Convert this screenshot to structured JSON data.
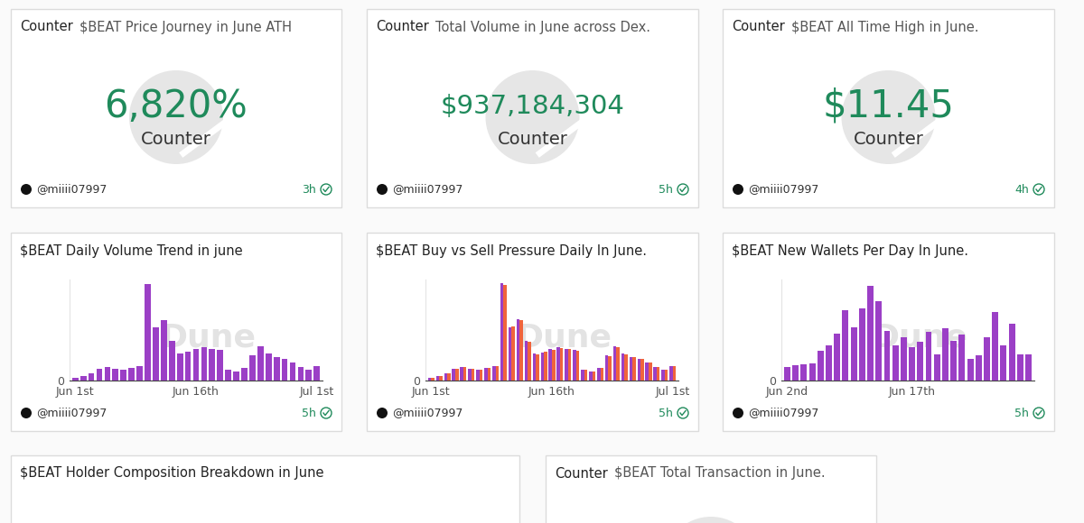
{
  "chart_data": [
    {
      "type": "counter",
      "tag": "Counter",
      "title": "$BEAT Price Journey in June ATH",
      "values": [
        6820
      ],
      "value_labels": [
        "6,820%"
      ],
      "watermark": "Counter",
      "author": "@miiii07997",
      "age": "3h"
    },
    {
      "type": "counter",
      "tag": "Counter",
      "title": "Total Volume in June across Dex.",
      "values": [
        937184304
      ],
      "value_labels": [
        "$937,184,304"
      ],
      "watermark": "Counter",
      "author": "@miiii07997",
      "age": "5h"
    },
    {
      "type": "counter",
      "tag": "Counter",
      "title": "$BEAT All Time High in June.",
      "values": [
        11.45
      ],
      "value_labels": [
        "$11.45"
      ],
      "watermark": "Counter",
      "author": "@miiii07997",
      "age": "4h"
    },
    {
      "type": "bar",
      "title": "$BEAT Daily Volume Trend in june",
      "categories": [
        "Jun 1st",
        null,
        null,
        null,
        null,
        null,
        null,
        null,
        null,
        null,
        null,
        null,
        null,
        null,
        null,
        "Jun 16th",
        null,
        null,
        null,
        null,
        null,
        null,
        null,
        null,
        null,
        null,
        null,
        null,
        null,
        null,
        "Jul 1st"
      ],
      "values": [
        3400000,
        5700000,
        9100000,
        14700000,
        17000000,
        14700000,
        13600000,
        15900000,
        18100000,
        122400000,
        68000000,
        77100000,
        49900000,
        34000000,
        36300000,
        39700000,
        41900000,
        39700000,
        38500000,
        13600000,
        11300000,
        15900000,
        31700000,
        43100000,
        34000000,
        29500000,
        27200000,
        22700000,
        17000000,
        13600000,
        18100000
      ],
      "color": "#9b3fc6",
      "ylim": [
        0,
        128000000
      ],
      "yticks": [
        0
      ],
      "watermark": "Dune",
      "author": "@miiii07997",
      "age": "5h"
    },
    {
      "type": "bar",
      "title": "$BEAT Buy vs Sell Pressure Daily In June.",
      "categories": [
        "Jun 1st",
        null,
        null,
        null,
        null,
        null,
        null,
        null,
        null,
        null,
        null,
        null,
        null,
        null,
        null,
        "Jun 16th",
        null,
        null,
        null,
        null,
        null,
        null,
        null,
        null,
        null,
        null,
        null,
        null,
        null,
        null,
        "Jul 1st"
      ],
      "series": [
        {
          "color": "#9b3fc6",
          "values": [
            1700000,
            2900000,
            4600000,
            7500000,
            8400000,
            7200000,
            6900000,
            8100000,
            9000000,
            61800000,
            33500000,
            39000000,
            25400000,
            17200000,
            18000000,
            20100000,
            21200000,
            19800000,
            19500000,
            6900000,
            5600000,
            8000000,
            16000000,
            21800000,
            17200000,
            14900000,
            13500000,
            11500000,
            8600000,
            6800000,
            9200000
          ]
        },
        {
          "color": "#f0643c",
          "values": [
            1700000,
            2800000,
            4500000,
            7200000,
            8600000,
            7500000,
            6700000,
            7800000,
            9100000,
            60600000,
            34500000,
            38100000,
            24500000,
            16800000,
            18300000,
            19600000,
            20700000,
            19900000,
            19000000,
            6700000,
            5700000,
            7900000,
            15700000,
            21300000,
            16800000,
            14600000,
            13700000,
            11200000,
            8400000,
            6800000,
            8900000
          ]
        }
      ],
      "ylim": [
        0,
        64000000
      ],
      "yticks": [
        0
      ],
      "watermark": "Dune",
      "author": "@miiii07997",
      "age": "5h"
    },
    {
      "type": "bar",
      "title": "$BEAT New Wallets Per Day In June.",
      "categories": [
        "Jun 2nd",
        null,
        null,
        null,
        null,
        null,
        null,
        null,
        null,
        null,
        null,
        null,
        null,
        null,
        null,
        "Jun 17th",
        null,
        null,
        null,
        null,
        null,
        null,
        null,
        null,
        null,
        null,
        null,
        null,
        null,
        null
      ],
      "values": [
        150,
        170,
        180,
        200,
        340,
        400,
        530,
        800,
        610,
        820,
        1080,
        900,
        560,
        400,
        490,
        380,
        440,
        550,
        300,
        600,
        450,
        520,
        250,
        290,
        490,
        780,
        400,
        650,
        300,
        300
      ],
      "color": "#9b3fc6",
      "ylim": [
        0,
        1150
      ],
      "yticks": [
        0
      ],
      "watermark": "Dune",
      "author": "@miiii07997",
      "age": "5h"
    },
    {
      "type": "pie",
      "title": "$BEAT Holder Composition Breakdown in June"
    },
    {
      "type": "counter",
      "tag": "Counter",
      "title": "$BEAT Total Transaction in June."
    }
  ]
}
